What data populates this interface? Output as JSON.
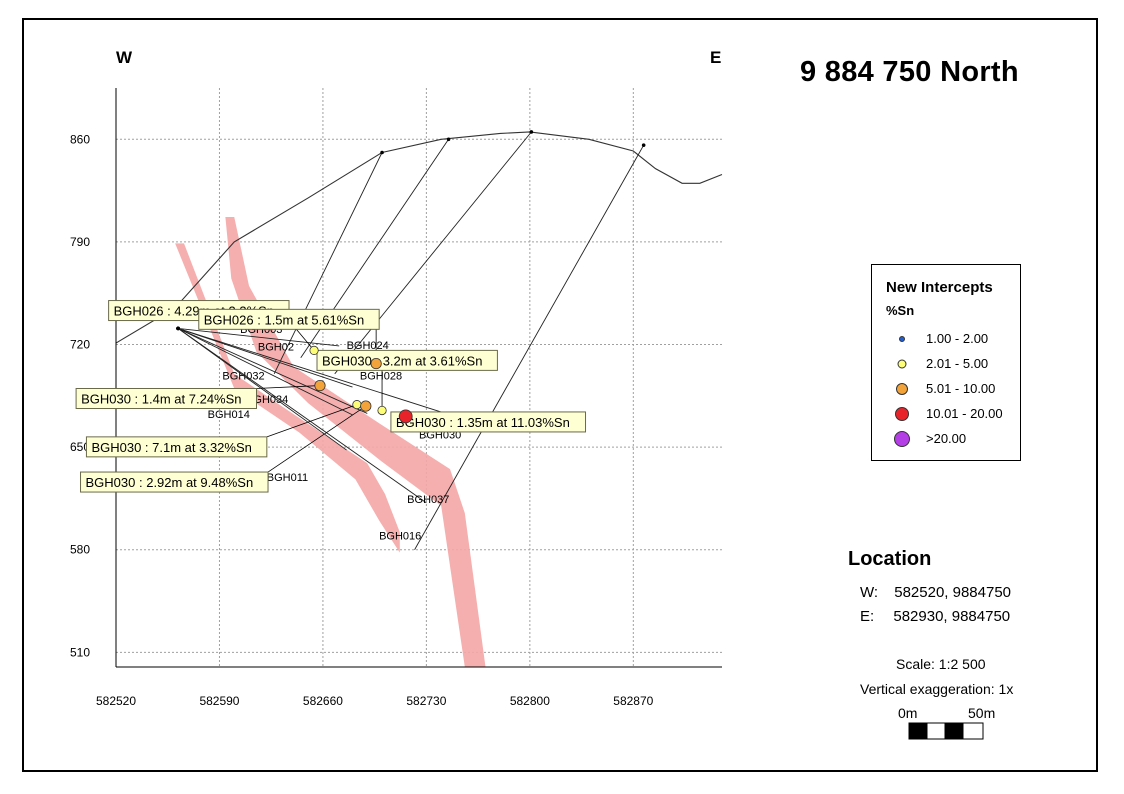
{
  "title": "9 884 750 North",
  "directions": {
    "west": "W",
    "east": "E"
  },
  "chart_data": {
    "type": "section",
    "x_axis": {
      "ticks": [
        "582520",
        "582590",
        "582660",
        "582730",
        "582800",
        "582870"
      ],
      "range": [
        582520,
        582930
      ]
    },
    "y_axis": {
      "ticks": [
        "860",
        "790",
        "720",
        "650",
        "580",
        "510"
      ],
      "range": [
        500,
        895
      ]
    },
    "grid": true,
    "topography": [
      [
        582520,
        721
      ],
      [
        582560,
        745
      ],
      [
        582600,
        790
      ],
      [
        582650,
        820
      ],
      [
        582700,
        851
      ],
      [
        582740,
        860
      ],
      [
        582780,
        864
      ],
      [
        582800,
        865
      ],
      [
        582840,
        860
      ],
      [
        582870,
        852
      ],
      [
        582885,
        840
      ],
      [
        582903,
        830
      ],
      [
        582915,
        830
      ],
      [
        582930,
        836
      ]
    ],
    "drillholes": [
      {
        "name": "BGH003",
        "label": "BGH003",
        "collar": [
          582700,
          851
        ],
        "toe": [
          582627,
          700
        ]
      },
      {
        "name": "BGH024",
        "label": "BGH024",
        "collar": [
          582745,
          860
        ],
        "toe": [
          582645,
          711
        ]
      },
      {
        "name": "BGH028",
        "label": "BGH028",
        "collar": [
          582801,
          865
        ],
        "toe": [
          582668,
          700
        ]
      },
      {
        "name": "BGH016",
        "label": "BGH016",
        "collar": [
          582877,
          856
        ],
        "toe": [
          582722,
          580
        ]
      },
      {
        "name": "BGH002",
        "label": "BGH02",
        "collar": [
          582562,
          731
        ],
        "toe": [
          582671,
          719
        ]
      },
      {
        "name": "BGH032",
        "label": "BGH032",
        "collar": [
          582562,
          731
        ],
        "toe": [
          582680,
          691
        ]
      },
      {
        "name": "BGH034",
        "label": "BGH034",
        "collar": [
          582562,
          731
        ],
        "toe": [
          582680,
          672
        ]
      },
      {
        "name": "BGH014",
        "label": "BGH014",
        "collar": [
          582562,
          731
        ],
        "toe": [
          582690,
          673
        ]
      },
      {
        "name": "BGH030",
        "label": "BGH030",
        "collar": [
          582562,
          731
        ],
        "toe": [
          582768,
          665
        ]
      },
      {
        "name": "BGH011",
        "label": "BGH011",
        "collar": [
          582562,
          731
        ],
        "toe": [
          582676,
          648
        ]
      },
      {
        "name": "BGH037",
        "label": "BGH037",
        "collar": [
          582562,
          731
        ],
        "toe": [
          582730,
          612
        ]
      }
    ],
    "intercepts": [
      {
        "hole": "BGH026",
        "x": 582654,
        "y": 716,
        "sn": 3.3,
        "class": "2.01 - 5.00",
        "label": "BGH026 : 4.29m at 3.3%Sn"
      },
      {
        "hole": "BGH026",
        "x": 582696,
        "y": 707,
        "sn": 5.61,
        "class": "5.01 - 10.00",
        "label": "BGH026 : 1.5m at 5.61%Sn"
      },
      {
        "hole": "BGH030",
        "x": 582700,
        "y": 675,
        "sn": 3.61,
        "class": "2.01 - 5.00",
        "label": "BGH030 : 3.2m at 3.61%Sn"
      },
      {
        "hole": "BGH030",
        "x": 582658,
        "y": 692,
        "sn": 7.24,
        "class": "5.01 - 10.00",
        "label": "BGH030 : 1.4m at 7.24%Sn"
      },
      {
        "hole": "BGH030",
        "x": 582716,
        "y": 671,
        "sn": 11.03,
        "class": "10.01 - 20.00",
        "label": "BGH030 : 1.35m at 11.03%Sn"
      },
      {
        "hole": "BGH030",
        "x": 582683,
        "y": 679,
        "sn": 3.32,
        "class": "2.01 - 5.00",
        "label": "BGH030 : 7.1m at 3.32%Sn"
      },
      {
        "hole": "BGH030",
        "x": 582689,
        "y": 678,
        "sn": 9.48,
        "class": "5.01 - 10.00",
        "label": "BGH030 : 2.92m at 9.48%Sn"
      }
    ]
  },
  "legend": {
    "title": "New Intercepts",
    "unit": "%Sn",
    "items": [
      {
        "label": "1.00 - 2.00",
        "color": "#1f5fd6"
      },
      {
        "label": "2.01 - 5.00",
        "color": "#fdfd7a"
      },
      {
        "label": "5.01 - 10.00",
        "color": "#f2a33a"
      },
      {
        "label": "10.01 - 20.00",
        "color": "#e8232a"
      },
      {
        "label": ">20.00",
        "color": "#b43fe6"
      }
    ]
  },
  "location": {
    "heading": "Location",
    "rows": [
      {
        "key": "W:",
        "value": "582520, 9884750"
      },
      {
        "key": "E:",
        "value": "582930, 9884750"
      }
    ]
  },
  "scale": "Scale: 1:2 500",
  "vertical_exaggeration": "Vertical exaggeration: 1x",
  "scalebar": {
    "start": "0m",
    "end": "50m"
  },
  "colors": {
    "ore_zone": "#f4a6a6",
    "label_box": "#ffffd4",
    "grid": "#a0a0a0"
  }
}
